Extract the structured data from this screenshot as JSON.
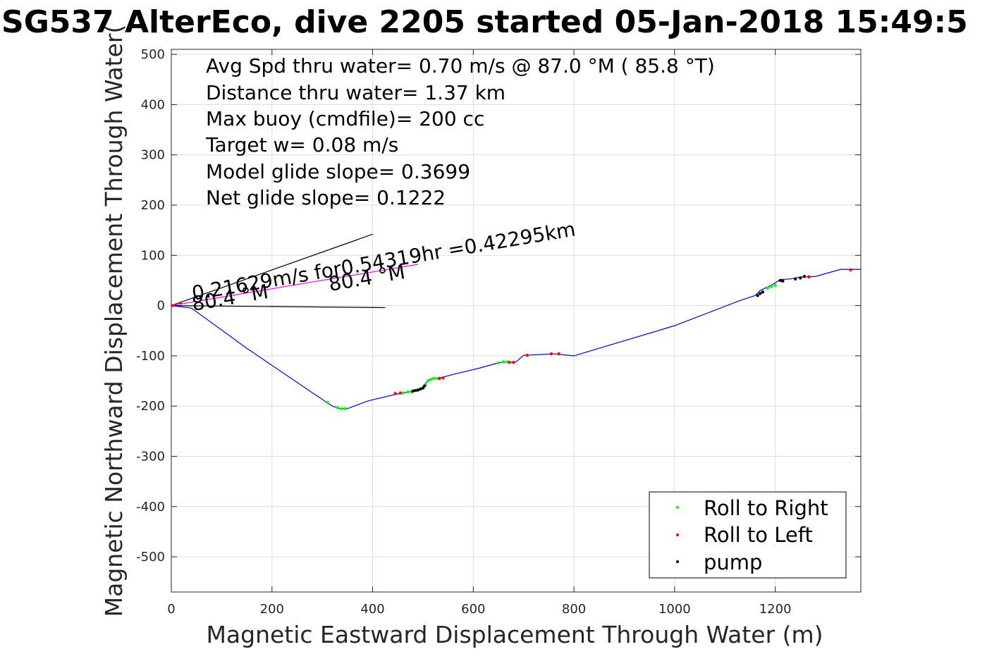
{
  "chart_data": {
    "type": "line",
    "title": "SG537 AlterEco, dive 2205 started 05-Jan-2018 15:49:5",
    "xlabel": "Magnetic Eastward Displacement Through Water (m)",
    "ylabel": "Magnetic Northward Displacement Through Water(",
    "xlim": [
      0,
      1370
    ],
    "ylim": [
      -570,
      510
    ],
    "xticks": [
      0,
      200,
      400,
      600,
      800,
      1000,
      1200
    ],
    "yticks": [
      500,
      400,
      300,
      200,
      100,
      0,
      -100,
      -200,
      -300,
      -400,
      -500
    ],
    "grid": true,
    "legend_position": "bottom-right",
    "colors": {
      "track": "#0000ff",
      "roll_right": "#00ff00",
      "roll_left": "#ff0000",
      "pump": "#000000",
      "glide_line": "#ff00ff"
    },
    "annotations": [
      "Avg Spd thru water=  0.70 m/s @  87.0 °M ( 85.8 °T)",
      "Distance thru water=  1.37 km",
      "Max buoy (cmdfile)= 200 cc",
      "Target w= 0.08 m/s",
      "Model glide slope= 0.3699",
      "Net glide slope= 0.1222"
    ],
    "current_label": "0.21629m/s for0.54319hr =0.42295km",
    "heading_label_1": "80.4 °M",
    "heading_label_2": "80.4 °M",
    "series": [
      {
        "name": "track",
        "x": [
          0,
          40,
          150,
          290,
          320,
          335,
          350,
          390,
          440,
          470,
          490,
          500,
          505,
          515,
          530,
          560,
          610,
          650,
          660,
          670,
          685,
          700,
          760,
          800,
          1000,
          1130,
          1160,
          1170,
          1180,
          1195,
          1210,
          1230,
          1250,
          1280,
          1330,
          1370
        ],
        "y": [
          0,
          -5,
          -85,
          -180,
          -200,
          -205,
          -205,
          -190,
          -178,
          -172,
          -170,
          -165,
          -155,
          -145,
          -145,
          -137,
          -125,
          -114,
          -112,
          -113,
          -112,
          -99,
          -96,
          -100,
          -40,
          10,
          20,
          30,
          35,
          42,
          52,
          53,
          57,
          58,
          72,
          72
        ]
      },
      {
        "name": "Roll to Right",
        "x": [
          310,
          330,
          338,
          346,
          460,
          470,
          478,
          505,
          510,
          516,
          522,
          530,
          650,
          660,
          668,
          1185,
          1192,
          1200
        ],
        "y": [
          -193,
          -203,
          -205,
          -205,
          -174,
          -172,
          -172,
          -157,
          -150,
          -147,
          -145,
          -145,
          -114,
          -112,
          -112,
          35,
          38,
          40
        ]
      },
      {
        "name": "Roll to Left",
        "x": [
          2,
          18,
          445,
          455,
          533,
          540,
          672,
          680,
          707,
          755,
          770,
          1267,
          1350
        ],
        "y": [
          0,
          5,
          -175,
          -174,
          -145,
          -144,
          -113,
          -113,
          -99,
          -96,
          -96,
          57,
          71
        ]
      },
      {
        "name": "pump",
        "x": [
          480,
          485,
          490,
          495,
          500,
          503,
          1165,
          1170,
          1175,
          1210,
          1215,
          1240,
          1250,
          1258
        ],
        "y": [
          -170,
          -169,
          -168,
          -166,
          -164,
          -160,
          20,
          24,
          27,
          50,
          49,
          53,
          55,
          58
        ]
      }
    ],
    "reference_lines": [
      {
        "name": "heading-line-upper",
        "x": [
          0,
          400
        ],
        "y": [
          0,
          142
        ]
      },
      {
        "name": "heading-line-lower",
        "x": [
          0,
          425
        ],
        "y": [
          0,
          -4
        ]
      },
      {
        "name": "net-glide-line",
        "x": [
          0,
          490
        ],
        "y": [
          0,
          82
        ]
      }
    ]
  }
}
